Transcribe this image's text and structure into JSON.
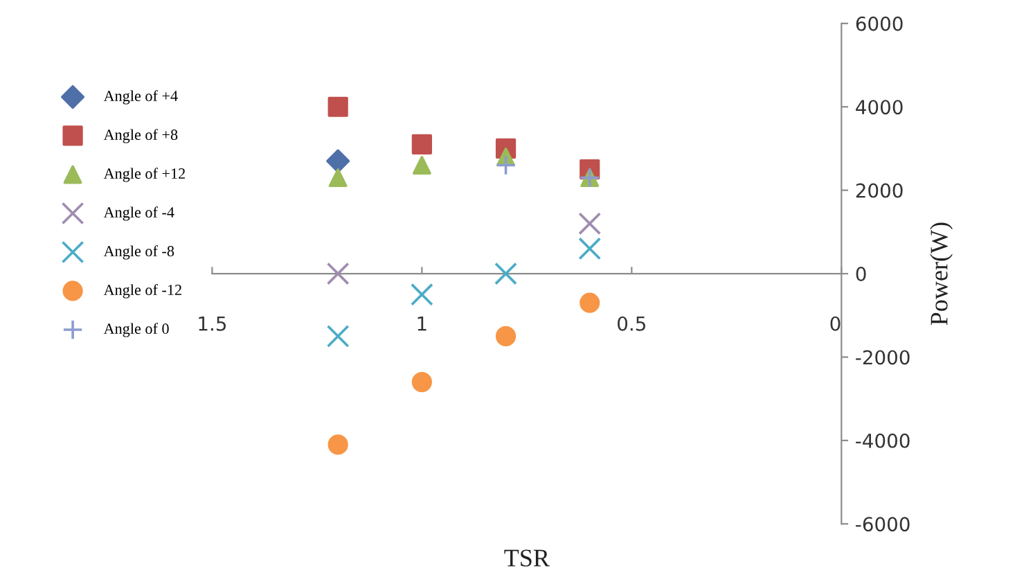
{
  "chart_data": {
    "type": "scatter",
    "xlabel": "TSR",
    "ylabel": "Power(W)",
    "x": [
      1.2,
      1.0,
      0.8,
      0.6
    ],
    "series": [
      {
        "name": "Angle of +4",
        "color": "#4f6fa8",
        "marker": "diamond",
        "values": [
          2700,
          null,
          null,
          null
        ]
      },
      {
        "name": "Angle of +8",
        "color": "#c0504d",
        "marker": "square",
        "values": [
          4000,
          3100,
          3000,
          2500
        ]
      },
      {
        "name": "Angle of +12",
        "color": "#9bbb59",
        "marker": "triangle",
        "values": [
          2300,
          2600,
          2800,
          2300
        ]
      },
      {
        "name": "Angle of -4",
        "color": "#a08cb0",
        "marker": "cross",
        "values": [
          0,
          null,
          null,
          1200
        ]
      },
      {
        "name": "Angle of -8",
        "color": "#4bacc6",
        "marker": "cross",
        "values": [
          -1500,
          -500,
          0,
          600
        ]
      },
      {
        "name": "Angle of -12",
        "color": "#f79646",
        "marker": "circle",
        "values": [
          -4100,
          -2600,
          -1500,
          -700
        ]
      },
      {
        "name": "Angle of 0",
        "color": "#8c9ccf",
        "marker": "plus",
        "values": [
          null,
          null,
          2600,
          2300
        ]
      }
    ],
    "xlim": [
      1.5,
      0
    ],
    "xticks": [
      1.5,
      1,
      0.5,
      0
    ],
    "ylim": [
      -6000,
      6000
    ],
    "yticks": [
      -6000,
      -4000,
      -2000,
      0,
      2000,
      4000,
      6000
    ],
    "grid": false,
    "legend": "left"
  }
}
